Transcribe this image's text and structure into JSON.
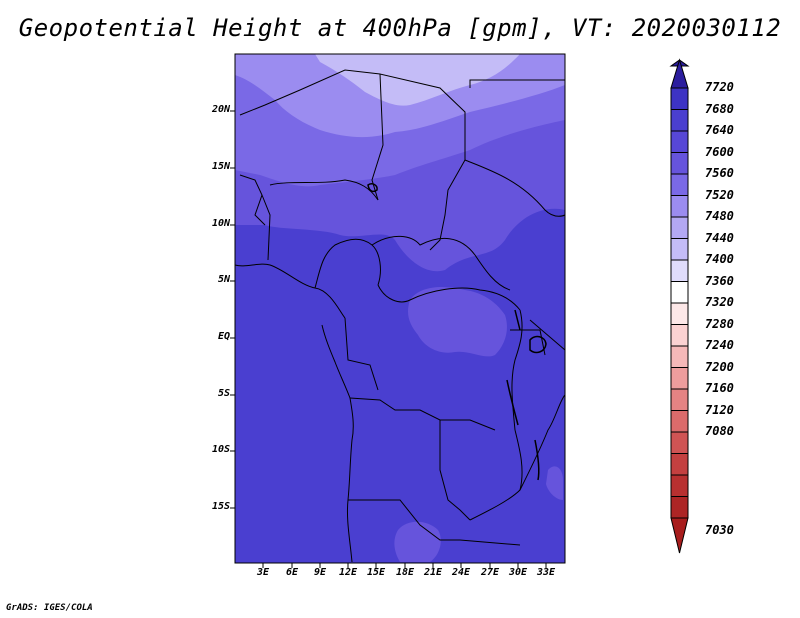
{
  "title": "Geopotential Height at 400hPa [gpm], VT: 2020030112",
  "credit": "GrADS: IGES/COLA",
  "map": {
    "lat_labels": [
      "20N",
      "15N",
      "10N",
      "5N",
      "EQ",
      "5S",
      "10S",
      "15S"
    ],
    "lon_labels": [
      "3E",
      "6E",
      "9E",
      "12E",
      "15E",
      "18E",
      "21E",
      "24E",
      "27E",
      "30E",
      "33E"
    ],
    "field_colors": {
      "7640_7680": "#3d33c4",
      "7600_7640": "#4a3fd0",
      "7560_7600": "#6654dc",
      "7520_7560": "#7a69e6",
      "7480_7520": "#9b8cf0",
      "7440_7480": "#c4bcf7"
    }
  },
  "colorbar": {
    "labels": [
      "7720",
      "7680",
      "7640",
      "7600",
      "7560",
      "7520",
      "7480",
      "7440",
      "7400",
      "7360",
      "7320",
      "7280",
      "7240",
      "7200",
      "7160",
      "7120",
      "7080",
      "7030"
    ],
    "colors": [
      "#2b1d9e",
      "#3d33c4",
      "#4a3fd0",
      "#5747d6",
      "#6654dc",
      "#7a69e6",
      "#9b8cf0",
      "#c4bcf7",
      "#e6e3fb",
      "#ffffff",
      "#fde0e0",
      "#f8c2c2",
      "#f0a2a2",
      "#e58383",
      "#d86060",
      "#cc4040",
      "#bb2a2a",
      "#a81d1d"
    ]
  }
}
